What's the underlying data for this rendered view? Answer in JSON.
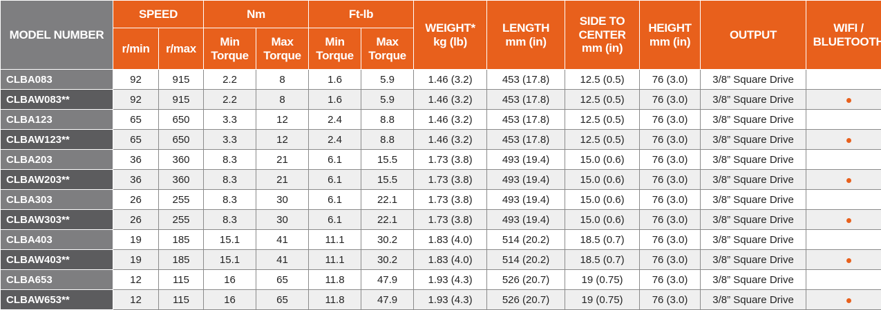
{
  "header": {
    "model_number": "MODEL NUMBER",
    "speed": "SPEED",
    "nm": "Nm",
    "ftlb": "Ft-lb",
    "weight": "WEIGHT*\nkg (lb)",
    "length": "LENGTH\nmm (in)",
    "side_to_center": "SIDE TO\nCENTER\nmm (in)",
    "height": "HEIGHT\nmm (in)",
    "output": "OUTPUT",
    "wifi_bluetooth": "WIFI /\nBLUETOOTH",
    "rmin": "r/min",
    "rmax": "r/max",
    "nm_min": "Min\nTorque",
    "nm_max": "Max\nTorque",
    "ft_min": "Min\nTorque",
    "ft_max": "Max\nTorque"
  },
  "rows": [
    {
      "model": "CLBA083",
      "rmin": "92",
      "rmax": "915",
      "nm_min": "2.2",
      "nm_max": "8",
      "ft_min": "1.6",
      "ft_max": "5.9",
      "weight": "1.46 (3.2)",
      "length": "453 (17.8)",
      "side": "12.5 (0.5)",
      "height": "76 (3.0)",
      "output": "3/8” Square Drive",
      "wifi": false
    },
    {
      "model": "CLBAW083**",
      "rmin": "92",
      "rmax": "915",
      "nm_min": "2.2",
      "nm_max": "8",
      "ft_min": "1.6",
      "ft_max": "5.9",
      "weight": "1.46 (3.2)",
      "length": "453 (17.8)",
      "side": "12.5 (0.5)",
      "height": "76 (3.0)",
      "output": "3/8” Square Drive",
      "wifi": true
    },
    {
      "model": "CLBA123",
      "rmin": "65",
      "rmax": "650",
      "nm_min": "3.3",
      "nm_max": "12",
      "ft_min": "2.4",
      "ft_max": "8.8",
      "weight": "1.46 (3.2)",
      "length": "453 (17.8)",
      "side": "12.5 (0.5)",
      "height": "76 (3.0)",
      "output": "3/8” Square Drive",
      "wifi": false
    },
    {
      "model": "CLBAW123**",
      "rmin": "65",
      "rmax": "650",
      "nm_min": "3.3",
      "nm_max": "12",
      "ft_min": "2.4",
      "ft_max": "8.8",
      "weight": "1.46 (3.2)",
      "length": "453 (17.8)",
      "side": "12.5 (0.5)",
      "height": "76 (3.0)",
      "output": "3/8” Square Drive",
      "wifi": true
    },
    {
      "model": "CLBA203",
      "rmin": "36",
      "rmax": "360",
      "nm_min": "8.3",
      "nm_max": "21",
      "ft_min": "6.1",
      "ft_max": "15.5",
      "weight": "1.73 (3.8)",
      "length": "493 (19.4)",
      "side": "15.0 (0.6)",
      "height": "76 (3.0)",
      "output": "3/8” Square Drive",
      "wifi": false
    },
    {
      "model": "CLBAW203**",
      "rmin": "36",
      "rmax": "360",
      "nm_min": "8.3",
      "nm_max": "21",
      "ft_min": "6.1",
      "ft_max": "15.5",
      "weight": "1.73 (3.8)",
      "length": "493 (19.4)",
      "side": "15.0 (0.6)",
      "height": "76 (3.0)",
      "output": "3/8” Square Drive",
      "wifi": true
    },
    {
      "model": "CLBA303",
      "rmin": "26",
      "rmax": "255",
      "nm_min": "8.3",
      "nm_max": "30",
      "ft_min": "6.1",
      "ft_max": "22.1",
      "weight": "1.73 (3.8)",
      "length": "493 (19.4)",
      "side": "15.0 (0.6)",
      "height": "76 (3.0)",
      "output": "3/8” Square Drive",
      "wifi": false
    },
    {
      "model": "CLBAW303**",
      "rmin": "26",
      "rmax": "255",
      "nm_min": "8.3",
      "nm_max": "30",
      "ft_min": "6.1",
      "ft_max": "22.1",
      "weight": "1.73 (3.8)",
      "length": "493 (19.4)",
      "side": "15.0 (0.6)",
      "height": "76 (3.0)",
      "output": "3/8” Square Drive",
      "wifi": true
    },
    {
      "model": "CLBA403",
      "rmin": "19",
      "rmax": "185",
      "nm_min": "15.1",
      "nm_max": "41",
      "ft_min": "11.1",
      "ft_max": "30.2",
      "weight": "1.83 (4.0)",
      "length": "514 (20.2)",
      "side": "18.5 (0.7)",
      "height": "76 (3.0)",
      "output": "3/8” Square Drive",
      "wifi": false
    },
    {
      "model": "CLBAW403**",
      "rmin": "19",
      "rmax": "185",
      "nm_min": "15.1",
      "nm_max": "41",
      "ft_min": "11.1",
      "ft_max": "30.2",
      "weight": "1.83 (4.0)",
      "length": "514 (20.2)",
      "side": "18.5 (0.7)",
      "height": "76 (3.0)",
      "output": "3/8” Square Drive",
      "wifi": true
    },
    {
      "model": "CLBA653",
      "rmin": "12",
      "rmax": "115",
      "nm_min": "16",
      "nm_max": "65",
      "ft_min": "11.8",
      "ft_max": "47.9",
      "weight": "1.93 (4.3)",
      "length": "526 (20.7)",
      "side": "19 (0.75)",
      "height": "76 (3.0)",
      "output": "3/8” Square Drive",
      "wifi": false
    },
    {
      "model": "CLBAW653**",
      "rmin": "12",
      "rmax": "115",
      "nm_min": "16",
      "nm_max": "65",
      "ft_min": "11.8",
      "ft_max": "47.9",
      "weight": "1.93 (4.3)",
      "length": "526 (20.7)",
      "side": "19 (0.75)",
      "height": "76 (3.0)",
      "output": "3/8” Square Drive",
      "wifi": true
    }
  ],
  "colors": {
    "header_orange": "#e8601c",
    "model_gray": "#7e7e80",
    "dot_orange": "#e8601c"
  },
  "icons": {
    "wifi_marker": "orange-dot-icon"
  }
}
